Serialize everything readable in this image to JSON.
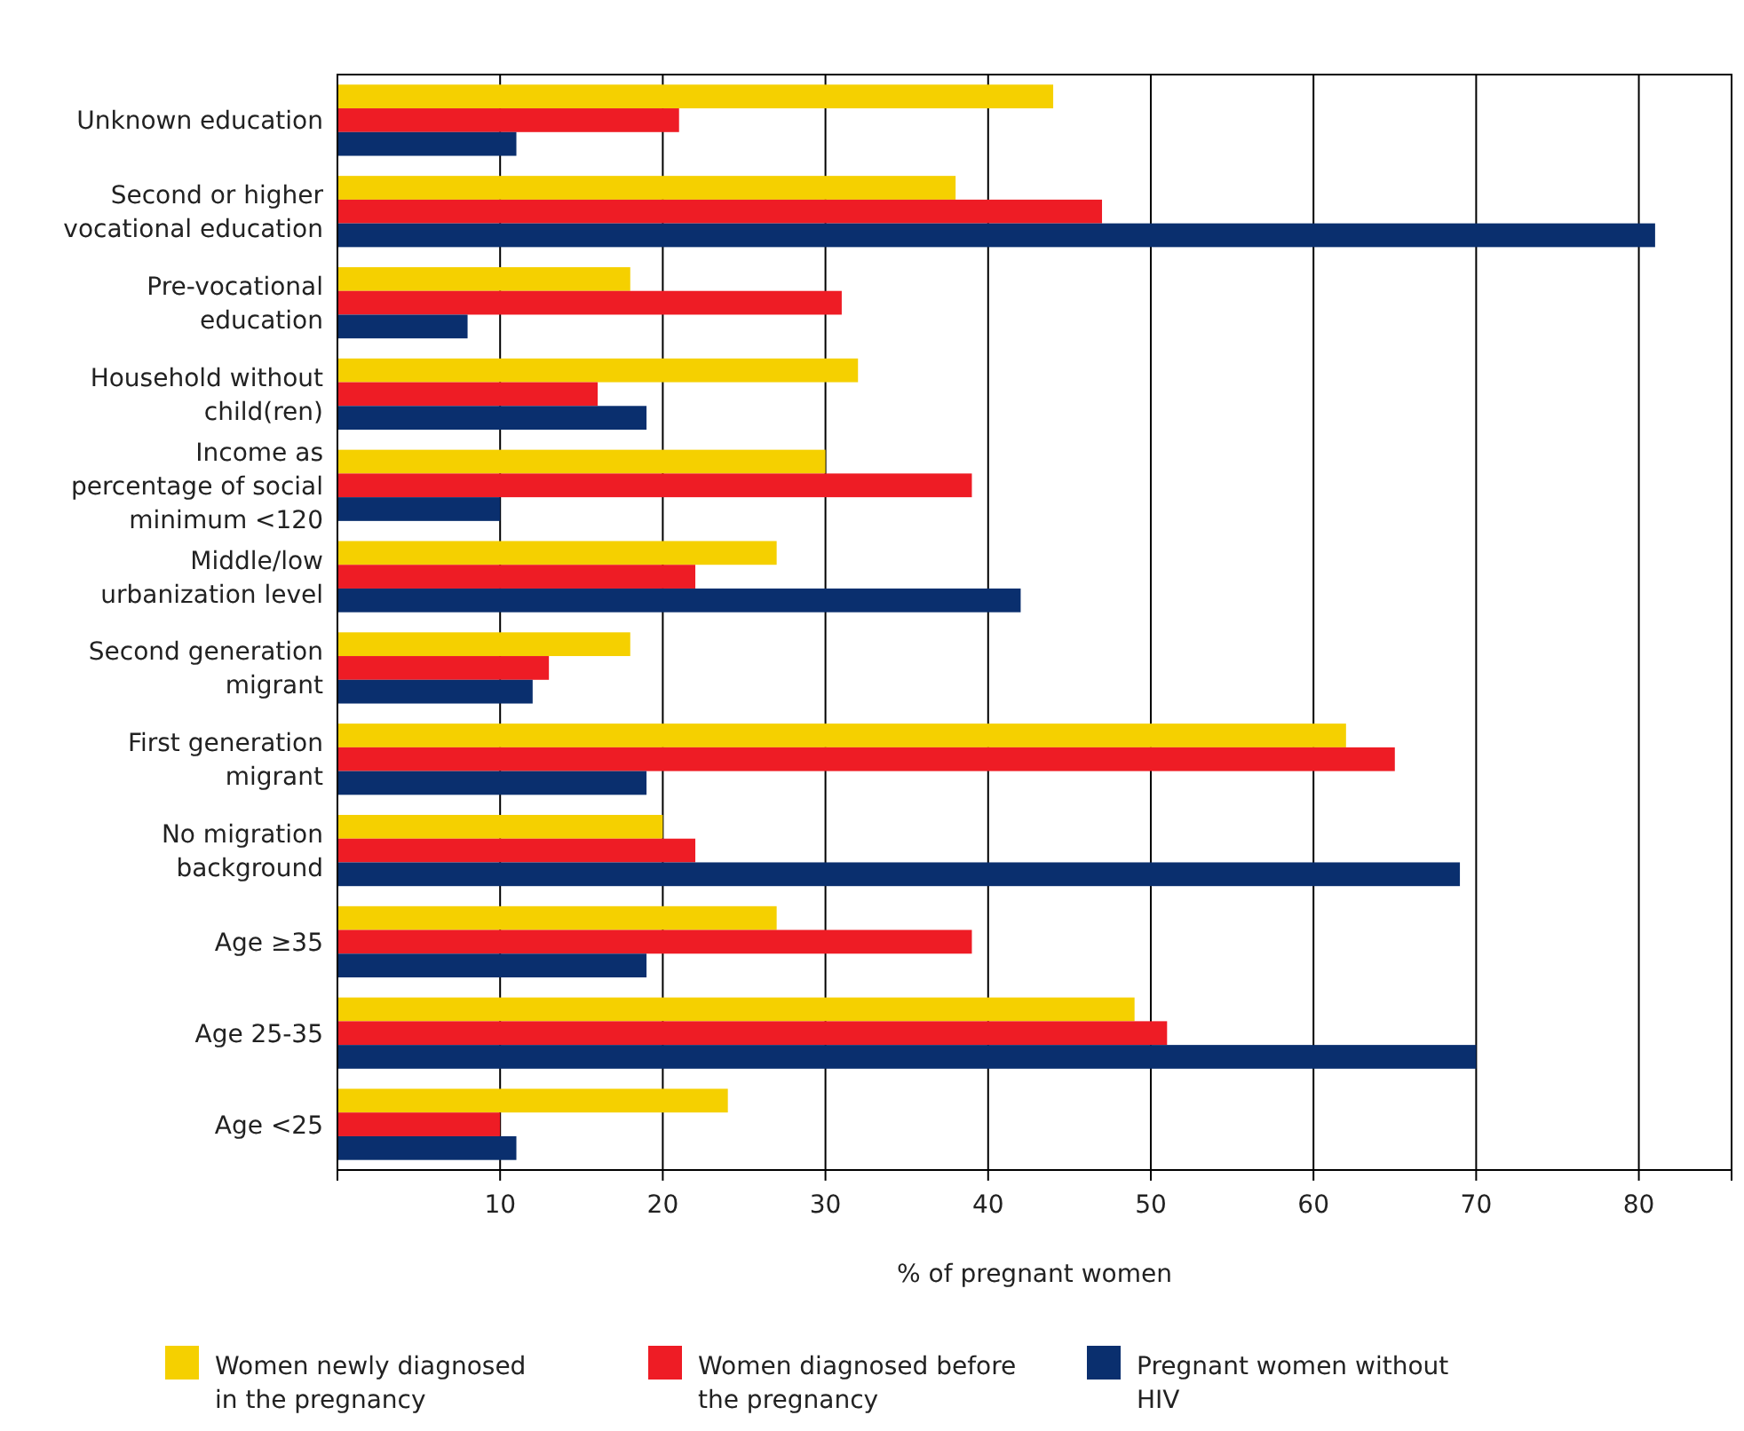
{
  "chart_data": {
    "type": "bar",
    "orientation": "horizontal",
    "xlabel": "% of pregnant women",
    "categories": [
      "Unknown education",
      "Second or higher vocational education",
      "Pre-vocational education",
      "Household without child(ren)",
      "Income as percentage of social minimum <120",
      "Middle/low urbanization level",
      "Second generation migrant",
      "First generation migrant",
      "No migration background",
      "Age ≥35",
      "Age 25-35",
      "Age <25"
    ],
    "series": [
      {
        "name": "Women newly diagnosed in the pregnancy",
        "color": "#f5d000",
        "values": [
          44,
          38,
          18,
          32,
          30,
          27,
          18,
          62,
          20,
          27,
          49,
          24
        ]
      },
      {
        "name": "Women diagnosed before the pregnancy",
        "color": "#ee1c25",
        "values": [
          21,
          47,
          31,
          16,
          39,
          22,
          13,
          65,
          22,
          39,
          51,
          10
        ]
      },
      {
        "name": "Pregnant women without HIV",
        "color": "#0a2f6e",
        "values": [
          11,
          81,
          8,
          19,
          10,
          42,
          12,
          19,
          69,
          19,
          70,
          11
        ]
      }
    ],
    "xlim": [
      0,
      85.7
    ],
    "xticks": [
      10,
      20,
      30,
      40,
      50,
      60,
      70,
      80
    ],
    "grid": "x",
    "legend": "bottom"
  }
}
